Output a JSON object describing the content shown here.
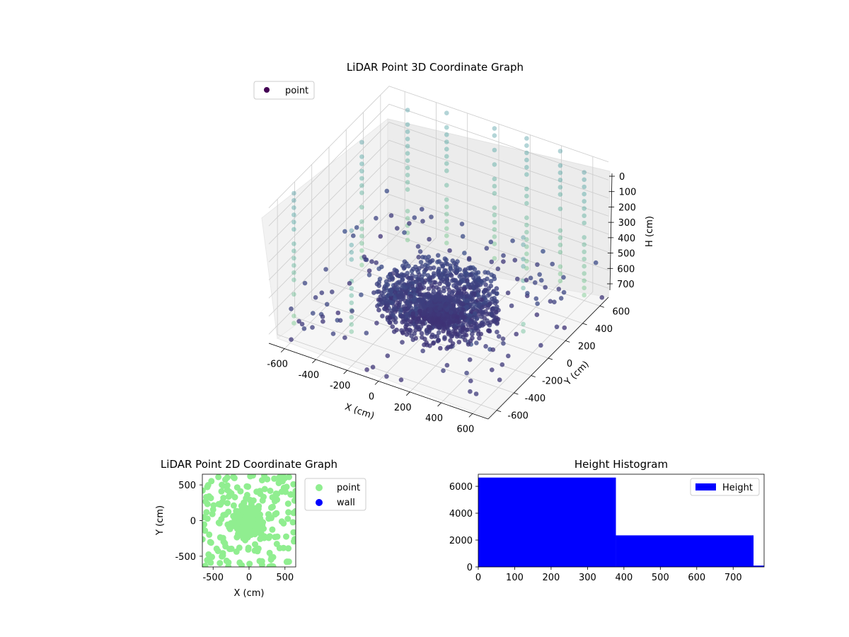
{
  "chart_data": [
    {
      "type": "scatter3d",
      "title": "LiDAR Point 3D Coordinate Graph",
      "xlabel": "X (cm)",
      "ylabel": "Y (cm)",
      "zlabel": "H (cm)",
      "xlim": [
        -700,
        700
      ],
      "ylim": [
        -700,
        700
      ],
      "zlim": [
        750,
        0
      ],
      "xticks": [
        "-600",
        "-400",
        "-200",
        "0",
        "200",
        "400",
        "600"
      ],
      "yticks": [
        "-600",
        "-400",
        "-200",
        "0",
        "200",
        "400",
        "600"
      ],
      "zticks": [
        "0",
        "100",
        "200",
        "300",
        "400",
        "500",
        "600",
        "700"
      ],
      "colormap": "viridis",
      "grid": true,
      "legend": {
        "entries": [
          "point"
        ],
        "placement": "upper-left"
      },
      "series": [
        {
          "name": "point",
          "description": "dense ring of points around the sensor at low height, sparse points spread outward and vertical columns of points at higher values"
        }
      ]
    },
    {
      "type": "scatter",
      "title": "LiDAR Point 2D Coordinate Graph",
      "xlabel": "X (cm)",
      "ylabel": "Y (cm)",
      "xlim": [
        -650,
        650
      ],
      "ylim": [
        -650,
        650
      ],
      "xticks": [
        "-500",
        "0",
        "500"
      ],
      "yticks": [
        "500",
        "0",
        "-500"
      ],
      "legend": {
        "entries": [
          "point",
          "wall"
        ],
        "placement": "outside-right"
      },
      "series": [
        {
          "name": "point",
          "color": "#90ee90"
        },
        {
          "name": "wall",
          "color": "#0000ff"
        }
      ]
    },
    {
      "type": "histogram",
      "title": "Height Histogram",
      "xlim": [
        0,
        785
      ],
      "ylim": [
        0,
        6900
      ],
      "xticks": [
        "0",
        "100",
        "200",
        "300",
        "400",
        "500",
        "600",
        "700"
      ],
      "yticks": [
        "0",
        "2000",
        "4000",
        "6000"
      ],
      "bins": [
        {
          "start": 0,
          "end": 378,
          "count": 6650
        },
        {
          "start": 378,
          "end": 756,
          "count": 2350
        },
        {
          "start": 756,
          "end": 785,
          "count": 100
        }
      ],
      "color": "#0000ff",
      "legend": {
        "entries": [
          "Height"
        ],
        "placement": "upper-right"
      }
    }
  ]
}
